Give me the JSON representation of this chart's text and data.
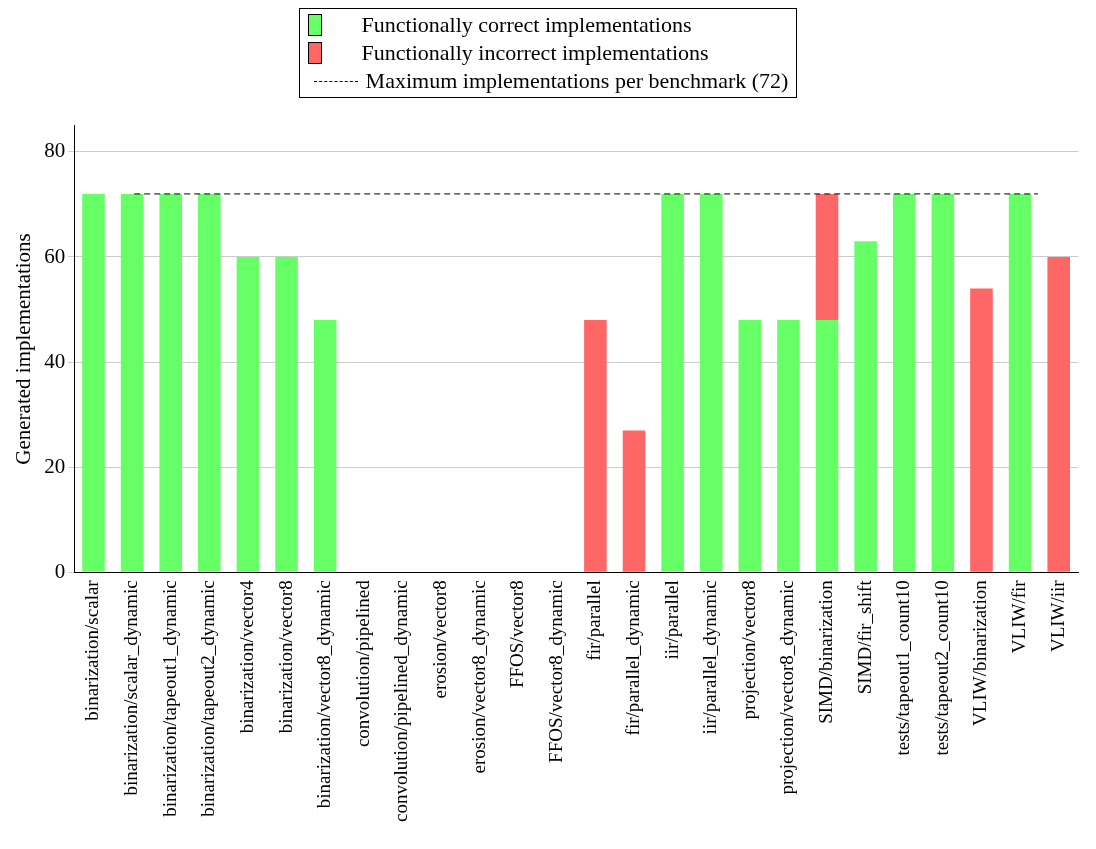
{
  "chart_data": {
    "type": "bar",
    "ylabel": "Generated implementations",
    "categories": [
      "binarization/scalar",
      "binarization/scalar_dynamic",
      "binarization/tapeout1_dynamic",
      "binarization/tapeout2_dynamic",
      "binarization/vector4",
      "binarization/vector8",
      "binarization/vector8_dynamic",
      "convolution/pipelined",
      "convolution/pipelined_dynamic",
      "erosion/vector8",
      "erosion/vector8_dynamic",
      "FFOS/vector8",
      "FFOS/vector8_dynamic",
      "fir/parallel",
      "fir/parallel_dynamic",
      "iir/parallel",
      "iir/parallel_dynamic",
      "projection/vector8",
      "projection/vector8_dynamic",
      "SIMD/binarization",
      "SIMD/fir_shift",
      "tests/tapeout1_count10",
      "tests/tapeout2_count10",
      "VLIW/binarization",
      "VLIW/fir",
      "VLIW/iir"
    ],
    "series": [
      {
        "name": "Functionally correct implementations",
        "color": "#66ff66",
        "values": [
          72,
          72,
          72,
          72,
          60,
          60,
          48,
          0,
          0,
          0,
          0,
          0,
          0,
          0,
          0,
          72,
          72,
          48,
          48,
          48,
          63,
          72,
          72,
          0,
          72,
          0
        ]
      },
      {
        "name": "Functionally incorrect implementations",
        "color": "#ff6666",
        "values": [
          0,
          0,
          0,
          0,
          0,
          0,
          0,
          0,
          0,
          0,
          0,
          0,
          0,
          48,
          27,
          0,
          0,
          0,
          0,
          24,
          0,
          0,
          0,
          54,
          0,
          60
        ]
      }
    ],
    "stacked": true,
    "ref_lines": [
      {
        "axis": "y",
        "value": 72,
        "label": "Maximum implementations per benchmark (72)",
        "color": "#000000",
        "line_style": "dashed"
      }
    ],
    "ylim": [
      0,
      85
    ],
    "yticks": [
      0,
      20,
      40,
      60,
      80
    ],
    "grid": "y",
    "legend": "top"
  }
}
